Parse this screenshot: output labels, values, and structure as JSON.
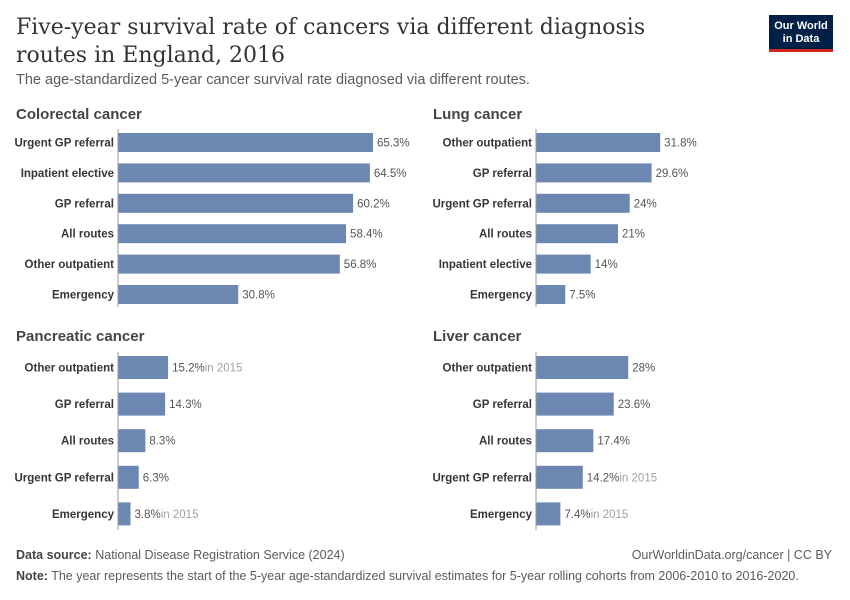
{
  "header": {
    "title": "Five-year survival rate of cancers via different diagnosis routes in England, 2016",
    "subtitle": "The age-standardized 5-year cancer survival rate diagnosed via different routes.",
    "logo_line1": "Our World",
    "logo_line2": "in Data"
  },
  "colors": {
    "bar": "#6d87b3",
    "axis": "#999999"
  },
  "chart_data": [
    {
      "type": "bar",
      "orientation": "horizontal",
      "title": "Colorectal cancer",
      "xlim": [
        0,
        70
      ],
      "categories": [
        "Urgent GP referral",
        "Inpatient elective",
        "GP referral",
        "All routes",
        "Other outpatient",
        "Emergency"
      ],
      "values": [
        65.3,
        64.5,
        60.2,
        58.4,
        56.8,
        30.8
      ],
      "value_labels": [
        "65.3%",
        "64.5%",
        "60.2%",
        "58.4%",
        "56.8%",
        "30.8%"
      ],
      "notes": [
        "",
        "",
        "",
        "",
        "",
        ""
      ]
    },
    {
      "type": "bar",
      "orientation": "horizontal",
      "title": "Lung cancer",
      "xlim": [
        0,
        70
      ],
      "categories": [
        "Other outpatient",
        "GP referral",
        "Urgent GP referral",
        "All routes",
        "Inpatient elective",
        "Emergency"
      ],
      "values": [
        31.8,
        29.6,
        24,
        21,
        14,
        7.5
      ],
      "value_labels": [
        "31.8%",
        "29.6%",
        "24%",
        "21%",
        "14%",
        "7.5%"
      ],
      "notes": [
        "",
        "",
        "",
        "",
        "",
        ""
      ]
    },
    {
      "type": "bar",
      "orientation": "horizontal",
      "title": "Pancreatic cancer",
      "xlim": [
        0,
        70
      ],
      "categories": [
        "Other outpatient",
        "GP referral",
        "All routes",
        "Urgent GP referral",
        "Emergency"
      ],
      "values": [
        15.2,
        14.3,
        8.3,
        6.3,
        3.8
      ],
      "value_labels": [
        "15.2%",
        "14.3%",
        "8.3%",
        "6.3%",
        "3.8%"
      ],
      "notes": [
        "in 2015",
        "",
        "",
        "",
        "in 2015"
      ]
    },
    {
      "type": "bar",
      "orientation": "horizontal",
      "title": "Liver cancer",
      "xlim": [
        0,
        70
      ],
      "categories": [
        "Other outpatient",
        "GP referral",
        "All routes",
        "Urgent GP referral",
        "Emergency"
      ],
      "values": [
        28,
        23.6,
        17.4,
        14.2,
        7.4
      ],
      "value_labels": [
        "28%",
        "23.6%",
        "17.4%",
        "14.2%",
        "7.4%"
      ],
      "notes": [
        "",
        "",
        "",
        "in 2015",
        "in 2015"
      ]
    }
  ],
  "footer": {
    "source_label": "Data source:",
    "source_text": "National Disease Registration Service (2024)",
    "url": "OurWorldinData.org/cancer | CC BY",
    "note_label": "Note:",
    "note_text": "The year represents the start of the 5-year age-standardized survival estimates for 5-year rolling cohorts from 2006-2010 to 2016-2020."
  }
}
